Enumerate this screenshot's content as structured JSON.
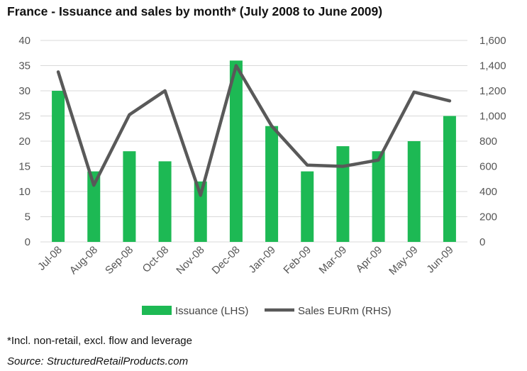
{
  "title": "France - Issuance and sales by month* (July 2008 to June 2009)",
  "footnote": "*Incl. non-retail, excl. flow and leverage",
  "source": "Source: StructuredRetailProducts.com",
  "colors": {
    "bar": "#1db954",
    "line": "#595959",
    "grid": "#d9d9d9"
  },
  "chart_data": {
    "type": "bar+line",
    "categories": [
      "Jul-08",
      "Aug-08",
      "Sep-08",
      "Oct-08",
      "Nov-08",
      "Dec-08",
      "Jan-09",
      "Feb-09",
      "Mar-09",
      "Apr-09",
      "May-09",
      "Jun-09"
    ],
    "series": [
      {
        "name": "Issuance (LHS)",
        "type": "bar",
        "axis": "left",
        "values": [
          30,
          14,
          18,
          16,
          12,
          36,
          23,
          14,
          19,
          18,
          20,
          25
        ]
      },
      {
        "name": "Sales EURm (RHS)",
        "type": "line",
        "axis": "right",
        "values": [
          1350,
          450,
          1010,
          1200,
          370,
          1400,
          920,
          610,
          600,
          650,
          1190,
          1120
        ]
      }
    ],
    "y_left": {
      "min": 0,
      "max": 40,
      "step": 5,
      "ticks": [
        "0",
        "5",
        "10",
        "15",
        "20",
        "25",
        "30",
        "35",
        "40"
      ]
    },
    "y_right": {
      "min": 0,
      "max": 1600,
      "step": 200,
      "ticks": [
        "0",
        "200",
        "400",
        "600",
        "800",
        "1,000",
        "1,200",
        "1,400",
        "1,600"
      ]
    },
    "grid": true,
    "legend": "bottom",
    "legend_entries": [
      "Issuance (LHS)",
      "Sales EURm (RHS)"
    ]
  }
}
